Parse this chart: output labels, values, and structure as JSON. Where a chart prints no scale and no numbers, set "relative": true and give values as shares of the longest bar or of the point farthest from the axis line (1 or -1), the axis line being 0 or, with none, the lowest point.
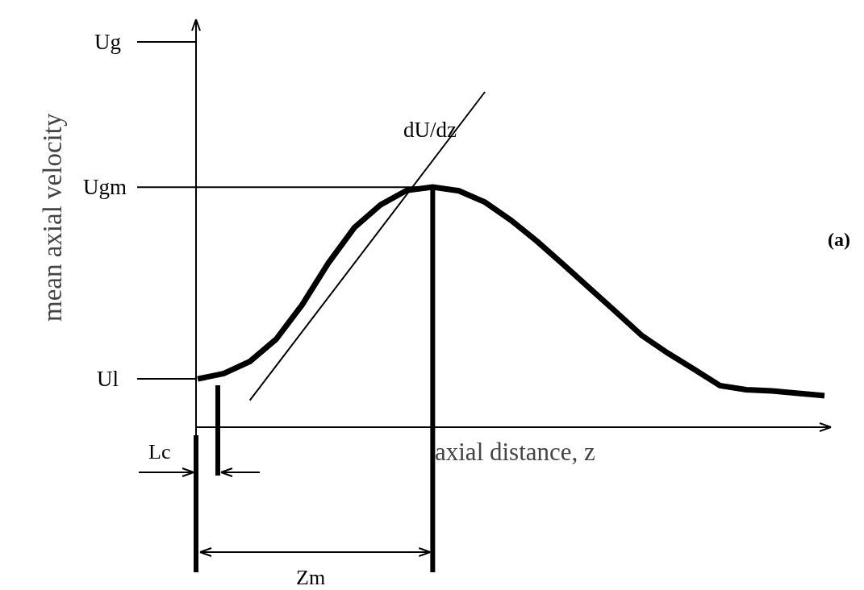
{
  "chart_data": {
    "type": "line",
    "relative": true,
    "ylabel": "mean axial velocity",
    "xlabel": "axial distance, z",
    "categories": [
      null,
      null,
      null,
      null,
      null,
      null,
      null,
      null,
      null,
      null,
      null,
      null,
      null,
      null,
      null,
      null,
      null,
      null,
      null,
      null,
      null,
      null,
      null,
      null,
      null
    ],
    "series": [
      {
        "color": "#000000",
        "values": [
          0.144,
          0.16,
          0.196,
          0.262,
          0.365,
          0.489,
          0.595,
          0.663,
          0.706,
          0.716,
          0.705,
          0.671,
          0.617,
          0.554,
          0.485,
          0.415,
          0.345,
          0.274,
          0.221,
          0.173,
          0.124,
          0.112,
          0.108,
          0.101,
          0.094
        ]
      },
      {
        "name": "dU/dz",
        "color": "#000000",
        "values": [
          null,
          null,
          0.08,
          null,
          null,
          null,
          null,
          null,
          null,
          null,
          null,
          1.0,
          null,
          null,
          null,
          null,
          null,
          null,
          null,
          null,
          null,
          null,
          null,
          null,
          null
        ]
      }
    ],
    "annotations": [
      "Ug",
      "Ugm",
      "Ul",
      "Lc",
      "Zm",
      "(a)"
    ],
    "marker": "none"
  }
}
